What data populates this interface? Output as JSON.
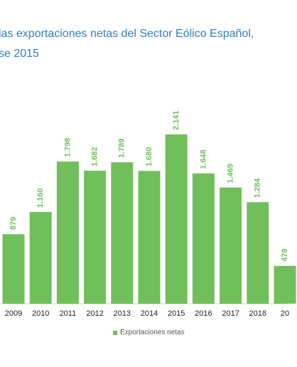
{
  "chart_data": {
    "type": "bar",
    "title_lines": [
      "las exportaciones netas del Sector Eólico Español,",
      "se 2015"
    ],
    "categories": [
      "2009",
      "2010",
      "2011",
      "2012",
      "2013",
      "2014",
      "2015",
      "2016",
      "2017",
      "2018",
      "20"
    ],
    "values": [
      879,
      1160,
      1798,
      1682,
      1789,
      1680,
      2141,
      1648,
      1469,
      1284,
      478
    ],
    "labels": [
      "879",
      "1.160",
      "1.798",
      "1.682",
      "1.789",
      "1.680",
      "2.141",
      "1.648",
      "1.469",
      "1.284",
      "478"
    ],
    "series": [
      {
        "name": "Exportaciones netas"
      }
    ],
    "ylim": [
      0,
      2400
    ],
    "grid": false,
    "legend_position": "bottom",
    "colors": {
      "bar": "#70bf5a",
      "label": "#70bf5a",
      "axis": "#cfcfcf",
      "title": "#2e7ec0"
    }
  }
}
